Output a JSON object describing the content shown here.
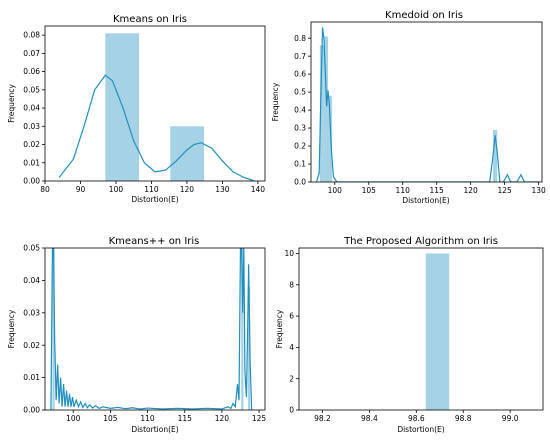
{
  "colors": {
    "bar": "#a6d2e6",
    "line": "#1f8fbf"
  },
  "chart_data": [
    {
      "type": "bar",
      "title": "Kmeans on Iris",
      "xlabel": "Distortion(E)",
      "ylabel": "Frequency",
      "xlim": [
        80,
        142
      ],
      "ylim": [
        0,
        0.085
      ],
      "xticks": [
        80,
        90,
        100,
        110,
        120,
        130,
        140
      ],
      "xticklabels": [
        "80",
        "90",
        "100",
        "110",
        "120",
        "130",
        "140"
      ],
      "yticks": [
        0,
        0.01,
        0.02,
        0.03,
        0.04,
        0.05,
        0.06,
        0.07,
        0.08
      ],
      "yticklabels": [
        "0.00",
        "0.01",
        "0.02",
        "0.03",
        "0.04",
        "0.05",
        "0.06",
        "0.07",
        "0.08"
      ],
      "bars": [
        {
          "x0": 97,
          "x1": 106.5,
          "value": 0.081
        },
        {
          "x0": 115.3,
          "x1": 124.8,
          "value": 0.03
        }
      ],
      "kde": [
        [
          84,
          0.002
        ],
        [
          88,
          0.012
        ],
        [
          91,
          0.03
        ],
        [
          94,
          0.05
        ],
        [
          97,
          0.058
        ],
        [
          99,
          0.055
        ],
        [
          102,
          0.04
        ],
        [
          105,
          0.022
        ],
        [
          108,
          0.01
        ],
        [
          111,
          0.005
        ],
        [
          114,
          0.006
        ],
        [
          117,
          0.011
        ],
        [
          120,
          0.017
        ],
        [
          122,
          0.02
        ],
        [
          124,
          0.021
        ],
        [
          127,
          0.018
        ],
        [
          130,
          0.011
        ],
        [
          133,
          0.005
        ],
        [
          136,
          0.002
        ],
        [
          139,
          0.0
        ]
      ]
    },
    {
      "type": "bar",
      "title": "Kmedoid on Iris",
      "xlabel": "Distortion(E)",
      "ylabel": "Frequency",
      "xlim": [
        96.5,
        130.5
      ],
      "ylim": [
        0,
        0.89
      ],
      "xticks": [
        100,
        105,
        110,
        115,
        120,
        125,
        130
      ],
      "xticklabels": [
        "100",
        "105",
        "110",
        "115",
        "120",
        "125",
        "130"
      ],
      "yticks": [
        0,
        0.1,
        0.2,
        0.3,
        0.4,
        0.5,
        0.6,
        0.7,
        0.8
      ],
      "yticklabels": [
        "0.0",
        "0.1",
        "0.2",
        "0.3",
        "0.4",
        "0.5",
        "0.6",
        "0.7",
        "0.8"
      ],
      "bars": [
        {
          "x0": 97.8,
          "x1": 98.4,
          "value": 0.76
        },
        {
          "x0": 98.4,
          "x1": 99.0,
          "value": 0.81
        },
        {
          "x0": 99.0,
          "x1": 99.6,
          "value": 0.48
        },
        {
          "x0": 123.3,
          "x1": 123.9,
          "value": 0.29
        }
      ],
      "kde": [
        [
          97.3,
          0.0
        ],
        [
          97.7,
          0.05
        ],
        [
          98.0,
          0.55
        ],
        [
          98.2,
          0.86
        ],
        [
          98.4,
          0.8
        ],
        [
          98.6,
          0.62
        ],
        [
          98.8,
          0.42
        ],
        [
          99.0,
          0.51
        ],
        [
          99.2,
          0.43
        ],
        [
          99.5,
          0.18
        ],
        [
          99.8,
          0.03
        ],
        [
          100.3,
          0.0
        ],
        [
          122.8,
          0.0
        ],
        [
          123.3,
          0.15
        ],
        [
          123.6,
          0.26
        ],
        [
          123.9,
          0.17
        ],
        [
          124.3,
          0.0
        ],
        [
          124.8,
          0.0
        ],
        [
          125.4,
          0.04
        ],
        [
          125.9,
          0.0
        ],
        [
          126.8,
          0.0
        ],
        [
          127.4,
          0.04
        ],
        [
          127.9,
          0.0
        ],
        [
          130.0,
          0.0
        ]
      ]
    },
    {
      "type": "bar",
      "title": "Kmeans++ on Iris",
      "xlabel": "Distortion(E)",
      "ylabel": "Frequency",
      "xlim": [
        96.2,
        125.8
      ],
      "ylim": [
        0,
        0.05
      ],
      "xticks": [
        100,
        105,
        110,
        115,
        120,
        125
      ],
      "xticklabels": [
        "100",
        "105",
        "110",
        "115",
        "120",
        "125"
      ],
      "yticks": [
        0,
        0.01,
        0.02,
        0.03,
        0.04,
        0.05
      ],
      "yticklabels": [
        "0.00",
        "0.01",
        "0.02",
        "0.03",
        "0.04",
        "0.05"
      ],
      "bars": [
        {
          "x0": 97.2,
          "x1": 97.5,
          "value": 0.05
        },
        {
          "x0": 122.6,
          "x1": 122.9,
          "value": 0.05
        },
        {
          "x0": 123.5,
          "x1": 123.8,
          "value": 0.038
        }
      ],
      "kde": [
        [
          97.0,
          0.0
        ],
        [
          97.2,
          0.05
        ],
        [
          97.35,
          0.05
        ],
        [
          97.5,
          0.022
        ],
        [
          97.7,
          0.003
        ],
        [
          97.9,
          0.014
        ],
        [
          98.1,
          0.002
        ],
        [
          98.3,
          0.01
        ],
        [
          98.5,
          0.001
        ],
        [
          98.7,
          0.008
        ],
        [
          98.9,
          0.001
        ],
        [
          99.1,
          0.006
        ],
        [
          99.3,
          0.001
        ],
        [
          99.5,
          0.005
        ],
        [
          99.7,
          0.001
        ],
        [
          99.9,
          0.004
        ],
        [
          100.1,
          0.001
        ],
        [
          100.4,
          0.003
        ],
        [
          100.7,
          0.001
        ],
        [
          101.0,
          0.0025
        ],
        [
          101.3,
          0.0008
        ],
        [
          101.6,
          0.002
        ],
        [
          101.9,
          0.0007
        ],
        [
          102.2,
          0.0016
        ],
        [
          102.6,
          0.0006
        ],
        [
          103.0,
          0.0013
        ],
        [
          103.5,
          0.0005
        ],
        [
          104.0,
          0.001
        ],
        [
          105,
          0.0005
        ],
        [
          106,
          0.0008
        ],
        [
          107,
          0.0004
        ],
        [
          108,
          0.0007
        ],
        [
          109,
          0.0003
        ],
        [
          110,
          0.0006
        ],
        [
          112,
          0.0003
        ],
        [
          114,
          0.0005
        ],
        [
          116,
          0.0003
        ],
        [
          118,
          0.0005
        ],
        [
          120,
          0.0003
        ],
        [
          120.8,
          0.001
        ],
        [
          121.2,
          0.0005
        ],
        [
          121.5,
          0.002
        ],
        [
          121.8,
          0.001
        ],
        [
          122.1,
          0.008
        ],
        [
          122.3,
          0.003
        ],
        [
          122.5,
          0.05
        ],
        [
          122.65,
          0.05
        ],
        [
          122.8,
          0.03
        ],
        [
          122.95,
          0.05
        ],
        [
          123.1,
          0.012
        ],
        [
          123.3,
          0.004
        ],
        [
          123.45,
          0.022
        ],
        [
          123.6,
          0.045
        ],
        [
          123.8,
          0.015
        ],
        [
          124.0,
          0.0
        ]
      ]
    },
    {
      "type": "bar",
      "title": "The Proposed Algorithm on Iris",
      "xlabel": "Distortion(E)",
      "ylabel": "Frequency",
      "xlim": [
        98.1,
        99.14
      ],
      "ylim": [
        0,
        10.35
      ],
      "xticks": [
        98.2,
        98.4,
        98.6,
        98.8,
        99.0
      ],
      "xticklabels": [
        "98.2",
        "98.4",
        "98.6",
        "98.8",
        "99.0"
      ],
      "yticks": [
        0,
        2,
        4,
        6,
        8,
        10
      ],
      "yticklabels": [
        "0",
        "2",
        "4",
        "6",
        "8",
        "10"
      ],
      "bars": [
        {
          "x0": 98.64,
          "x1": 98.74,
          "value": 10
        }
      ],
      "kde": []
    }
  ]
}
